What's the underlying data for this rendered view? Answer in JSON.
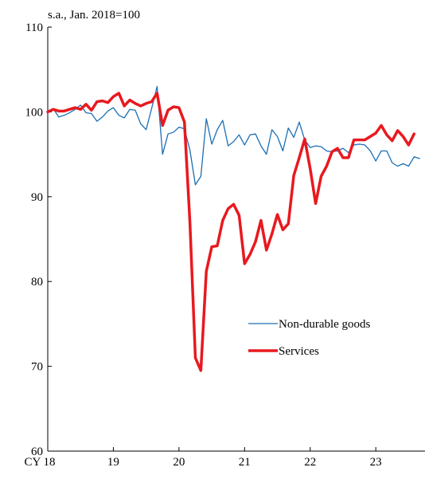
{
  "chart_data": {
    "type": "line",
    "unit_label": "s.a., Jan. 2018=100",
    "x_ticks": [
      {
        "label": "CY 18",
        "x": 2018.0
      },
      {
        "label": "19",
        "x": 2019.0
      },
      {
        "label": "20",
        "x": 2020.0
      },
      {
        "label": "21",
        "x": 2021.0
      },
      {
        "label": "22",
        "x": 2022.0
      },
      {
        "label": "23",
        "x": 2023.0
      }
    ],
    "xlim": [
      2018.0,
      2023.75
    ],
    "ylim": [
      60,
      110
    ],
    "y_ticks": [
      60,
      70,
      80,
      90,
      100,
      110
    ],
    "grid": false,
    "legend_position": "lower-right",
    "series": [
      {
        "name": "Non-durable goods",
        "color": "#1a6fb5",
        "style": "thin",
        "start": 2018.0,
        "step": 0.0833333,
        "values": [
          100.0,
          100.4,
          99.4,
          99.6,
          99.9,
          100.3,
          100.8,
          99.9,
          99.8,
          98.9,
          99.4,
          100.1,
          100.5,
          99.6,
          99.3,
          100.3,
          100.2,
          98.6,
          97.9,
          100.4,
          103.0,
          95.0,
          97.4,
          97.6,
          98.2,
          98.0,
          95.5,
          91.4,
          92.4,
          99.2,
          96.2,
          97.9,
          99.0,
          96.0,
          96.5,
          97.3,
          96.1,
          97.3,
          97.4,
          96.0,
          95.0,
          97.9,
          97.1,
          95.4,
          98.1,
          97.0,
          98.8,
          96.7,
          95.8,
          96.0,
          95.9,
          95.4,
          95.3,
          95.4,
          95.7,
          95.2,
          96.1,
          96.2,
          96.1,
          95.4,
          94.2,
          95.4,
          95.4,
          94.0,
          93.6,
          93.9,
          93.6,
          94.7,
          94.5
        ]
      },
      {
        "name": "Services",
        "color": "#e8191f",
        "style": "thick",
        "start": 2018.0,
        "step": 0.0833333,
        "values": [
          100.0,
          100.3,
          100.1,
          100.1,
          100.3,
          100.5,
          100.3,
          100.9,
          100.2,
          101.2,
          101.3,
          101.1,
          101.8,
          102.2,
          100.7,
          101.4,
          101.0,
          100.7,
          101.0,
          101.2,
          102.2,
          98.4,
          100.2,
          100.6,
          100.5,
          98.8,
          87.0,
          71.0,
          69.5,
          81.2,
          84.1,
          84.2,
          87.2,
          88.6,
          89.1,
          87.8,
          82.1,
          83.2,
          84.7,
          87.2,
          83.7,
          85.6,
          87.9,
          86.1,
          86.8,
          92.5,
          94.6,
          96.8,
          93.3,
          89.2,
          92.4,
          93.6,
          95.3,
          95.7,
          94.6,
          94.6,
          96.7,
          96.7,
          96.7,
          97.1,
          97.5,
          98.4,
          97.3,
          96.6,
          97.8,
          97.1,
          96.1,
          97.4
        ]
      }
    ]
  }
}
